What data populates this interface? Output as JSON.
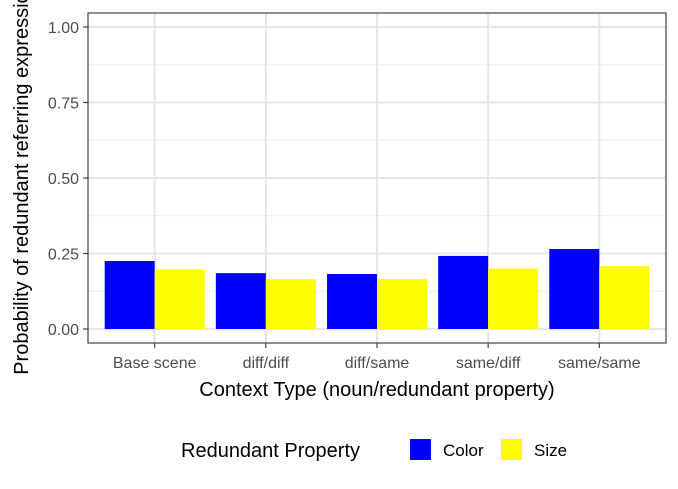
{
  "chart_data": {
    "type": "bar",
    "title": "",
    "xlabel": "Context Type (noun/redundant property)",
    "ylabel": "Probability of redundant referring expression",
    "categories": [
      "Base scene",
      "diff/diff",
      "diff/same",
      "same/diff",
      "same/same"
    ],
    "series": [
      {
        "name": "Color",
        "color": "#0000ff",
        "values": [
          0.225,
          0.185,
          0.182,
          0.242,
          0.265
        ]
      },
      {
        "name": "Size",
        "color": "#ffff00",
        "values": [
          0.198,
          0.165,
          0.165,
          0.2,
          0.208
        ]
      }
    ],
    "ylim": [
      0,
      1.0
    ],
    "yticks": [
      0.0,
      0.25,
      0.5,
      0.75,
      1.0
    ],
    "ytick_labels": [
      "0.00",
      "0.25",
      "0.50",
      "0.75",
      "1.00"
    ],
    "grid": true,
    "legend": {
      "title": "Redundant Property",
      "position": "bottom",
      "items": [
        "Color",
        "Size"
      ]
    }
  }
}
